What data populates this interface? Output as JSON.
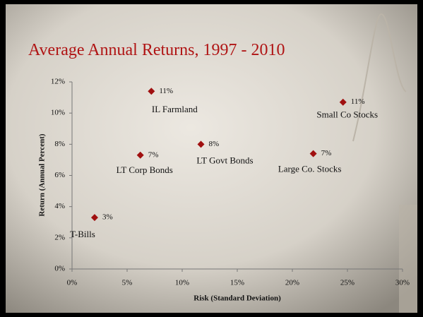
{
  "chart_data": {
    "type": "scatter",
    "title": "Average Annual Returns, 1997 - 2010",
    "x_label": "Risk (Standard Deviation)",
    "y_label": "Return (Annual Percent)",
    "point_labels": [
      "T-Bills",
      "LT Corp Bonds",
      "IL Farmland",
      "LT Govt Bonds",
      "Large Co. Stocks",
      "Small Co Stocks"
    ],
    "x": [
      2.05,
      6.2,
      7.2,
      11.7,
      21.9,
      24.6
    ],
    "values": [
      3.3,
      7.3,
      11.4,
      8.0,
      7.4,
      10.7
    ],
    "value_labels": [
      "3%",
      "7%",
      "11%",
      "8%",
      "7%",
      "11%"
    ],
    "color": "#a01010",
    "xlim": [
      0,
      30
    ],
    "xticks": [
      {
        "value": 0,
        "label": "0%"
      },
      {
        "value": 5,
        "label": "5%"
      },
      {
        "value": 10,
        "label": "10%"
      },
      {
        "value": 15,
        "label": "15%"
      },
      {
        "value": 20,
        "label": "20%"
      },
      {
        "value": 25,
        "label": "25%"
      },
      {
        "value": 30,
        "label": "30%"
      }
    ],
    "ylim": [
      0,
      12
    ],
    "yticks": [
      {
        "value": 0,
        "label": "0%"
      },
      {
        "value": 2,
        "label": "2%"
      },
      {
        "value": 4,
        "label": "4%"
      },
      {
        "value": 6,
        "label": "6%"
      },
      {
        "value": 8,
        "label": "8%"
      },
      {
        "value": 10,
        "label": "10%"
      },
      {
        "value": 12,
        "label": "12%"
      }
    ]
  }
}
